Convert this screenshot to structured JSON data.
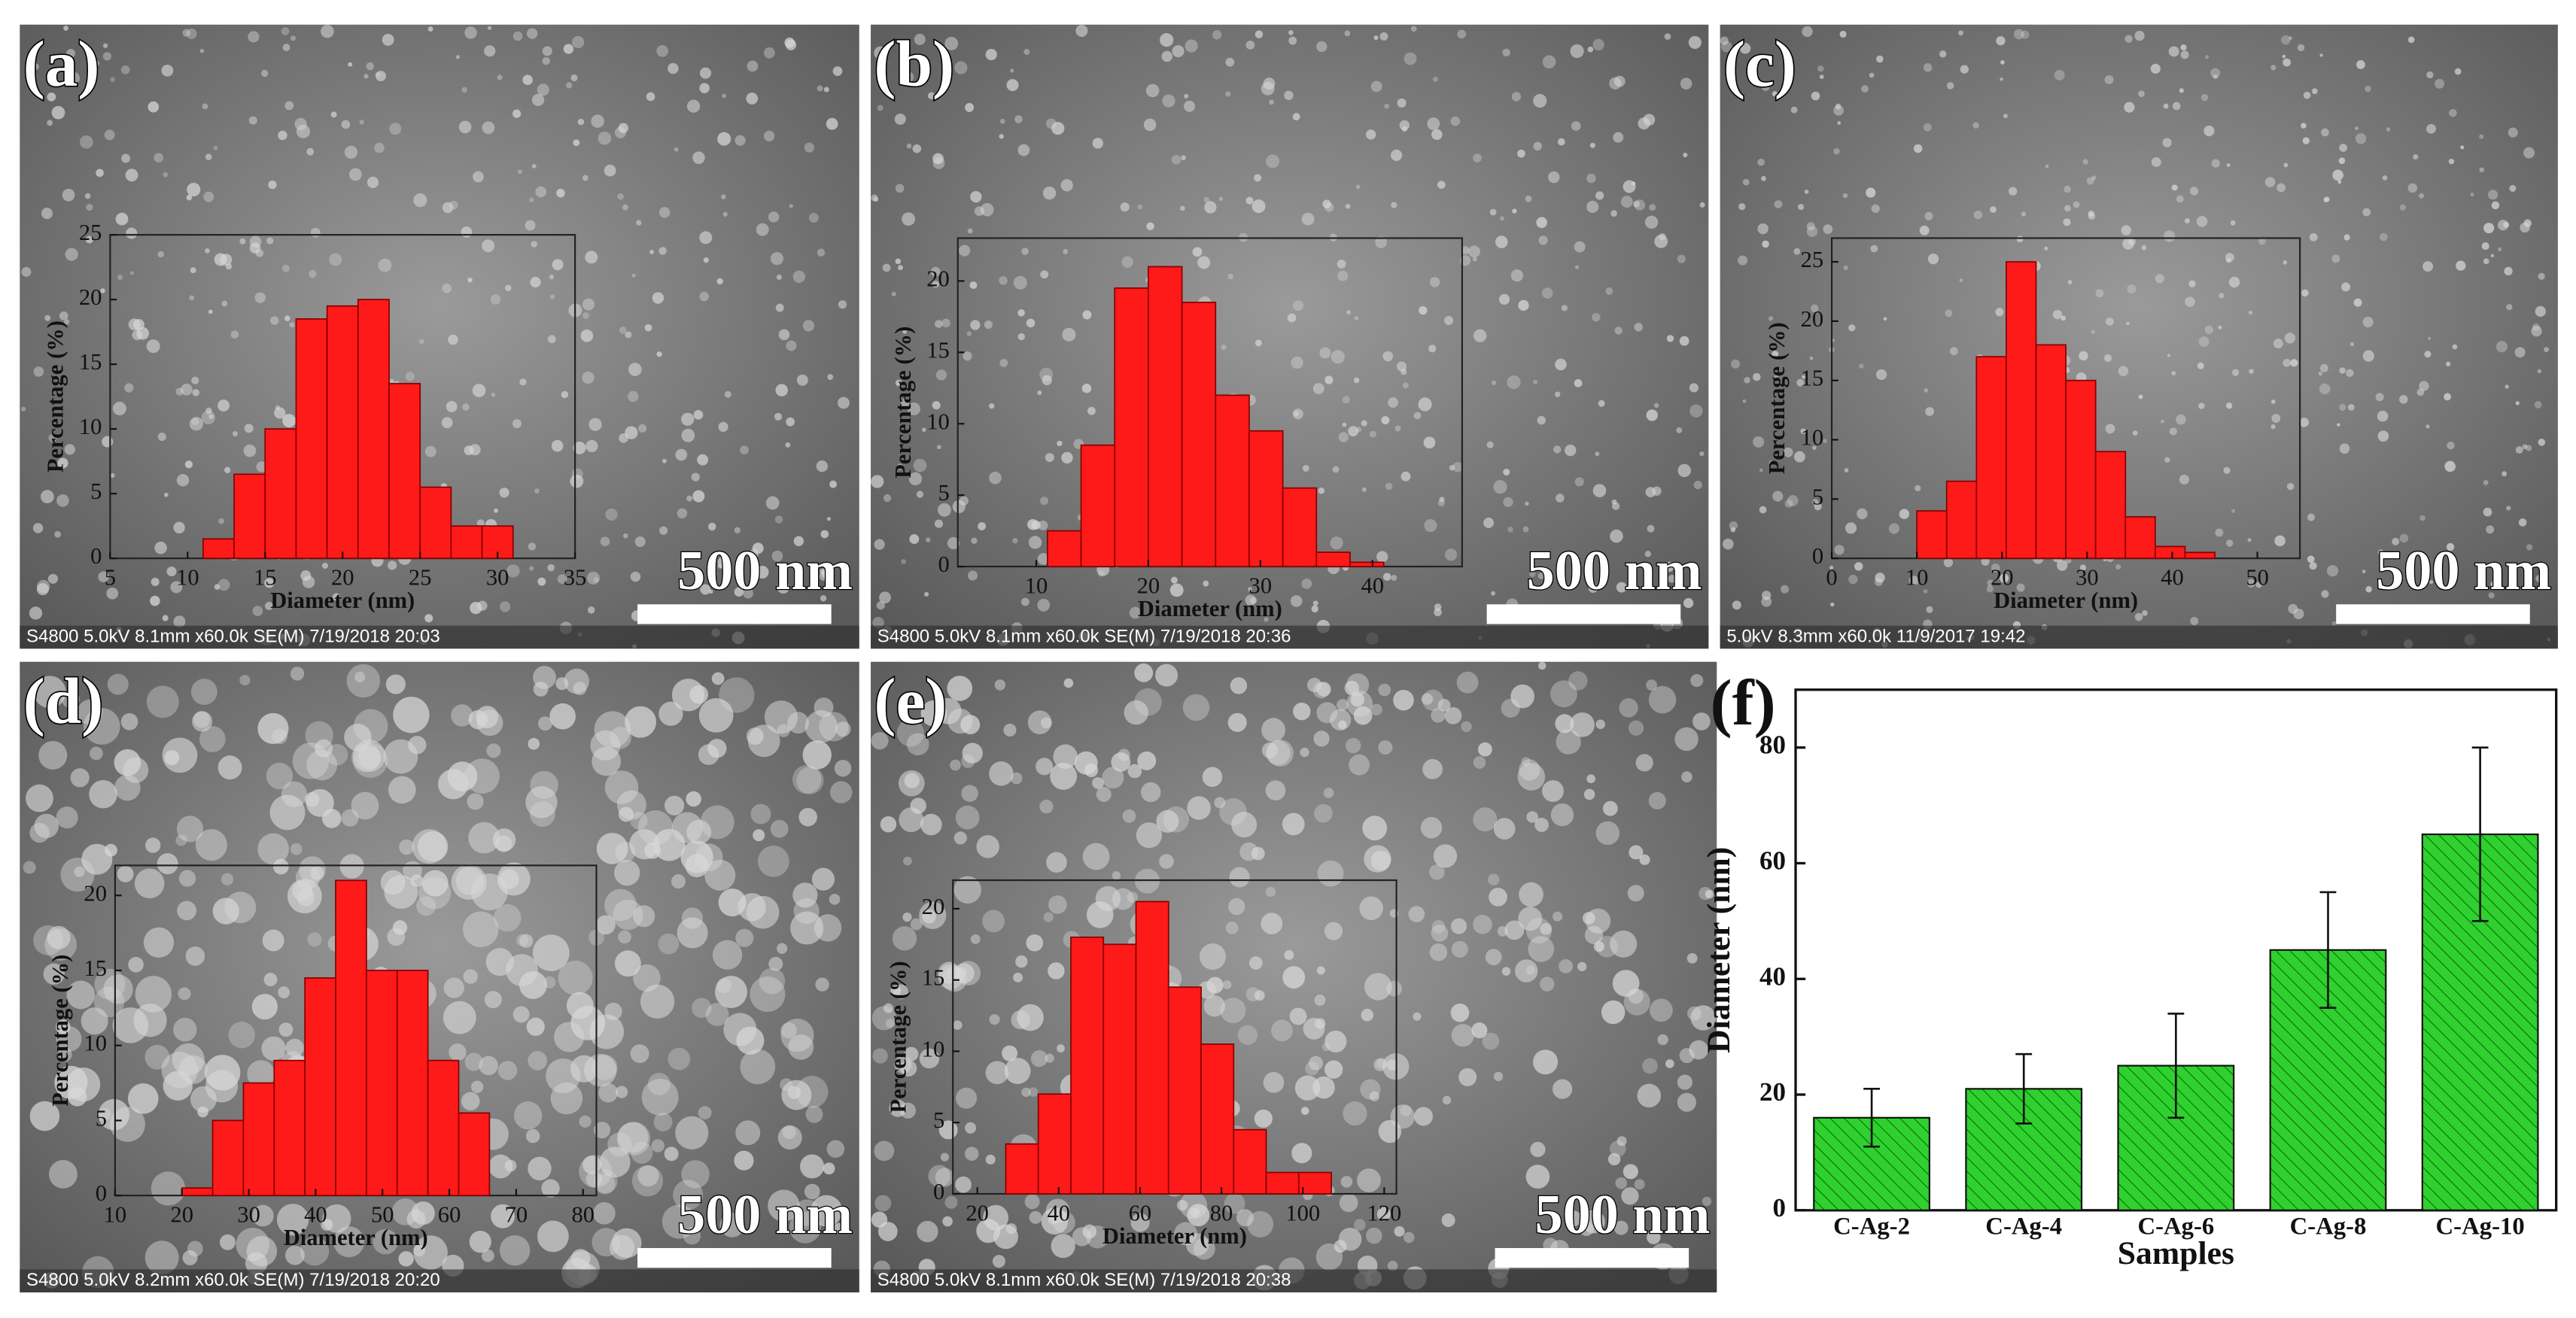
{
  "chart_data": [
    {
      "type": "histogram",
      "panel_label": "(a)",
      "scale_bar": "500 nm",
      "info": "S4800 5.0kV 8.1mm x60.0k SE(M) 7/19/2018 20:03",
      "xlabel": "Diameter (nm)",
      "ylabel": "Percentage (%)",
      "color": "#ff1a1a",
      "bins": [
        11,
        13,
        15,
        17,
        19,
        21,
        23,
        25,
        27,
        29,
        31
      ],
      "values": [
        1.5,
        6.5,
        10,
        18.5,
        19.5,
        20,
        13.5,
        5.5,
        2.5,
        2.5
      ],
      "xlim": [
        5,
        35
      ],
      "xticks": [
        5,
        10,
        15,
        20,
        25,
        30,
        35
      ],
      "ylim": [
        0,
        25
      ],
      "yticks": [
        0,
        5,
        10,
        15,
        20,
        25
      ]
    },
    {
      "type": "histogram",
      "panel_label": "(b)",
      "scale_bar": "500 nm",
      "info": "S4800 5.0kV 8.1mm x60.0k SE(M) 7/19/2018 20:36",
      "xlabel": "Diameter (nm)",
      "ylabel": "Percentage (%)",
      "color": "#ff1a1a",
      "bins": [
        11,
        14,
        17,
        20,
        23,
        26,
        29,
        32,
        35,
        38,
        41
      ],
      "values": [
        2.5,
        8.5,
        19.5,
        21,
        18.5,
        12,
        9.5,
        5.5,
        1,
        0.3
      ],
      "xlim": [
        3,
        48
      ],
      "xticks": [
        10,
        20,
        30,
        40
      ],
      "ylim": [
        0,
        23
      ],
      "yticks": [
        0,
        5,
        10,
        15,
        20
      ]
    },
    {
      "type": "histogram",
      "panel_label": "(c)",
      "scale_bar": "500 nm",
      "info": "5.0kV 8.3mm x60.0k 11/9/2017 19:42",
      "xlabel": "Diameter (nm)",
      "ylabel": "Percentage (%)",
      "color": "#ff1a1a",
      "bins": [
        10,
        13.5,
        17,
        20.5,
        24,
        27.5,
        31,
        34.5,
        38,
        41.5,
        45
      ],
      "values": [
        4,
        6.5,
        17,
        25,
        18,
        15,
        9,
        3.5,
        1,
        0.5
      ],
      "xlim": [
        0,
        55
      ],
      "xticks": [
        0,
        10,
        20,
        30,
        40,
        50
      ],
      "ylim": [
        0,
        27
      ],
      "yticks": [
        0,
        5,
        10,
        15,
        20,
        25
      ]
    },
    {
      "type": "histogram",
      "panel_label": "(d)",
      "scale_bar": "500 nm",
      "info": "S4800 5.0kV 8.2mm x60.0k SE(M) 7/19/2018 20:20",
      "xlabel": "Diameter (nm)",
      "ylabel": "Percentage (%)",
      "color": "#ff1a1a",
      "bins": [
        20,
        24.6,
        29.2,
        33.8,
        38.4,
        43,
        47.6,
        52.2,
        56.8,
        61.4,
        66
      ],
      "values": [
        0.5,
        5,
        7.5,
        9,
        14.5,
        21,
        15,
        15,
        9,
        5.5
      ],
      "xlim": [
        10,
        82
      ],
      "xticks": [
        10,
        20,
        30,
        40,
        50,
        60,
        70,
        80
      ],
      "ylim": [
        0,
        22
      ],
      "yticks": [
        0,
        5,
        10,
        15,
        20
      ]
    },
    {
      "type": "histogram",
      "panel_label": "(e)",
      "scale_bar": "500 nm",
      "info": "S4800 5.0kV 8.1mm x60.0k SE(M) 7/19/2018 20:38",
      "xlabel": "Diameter (nm)",
      "ylabel": "Percentage (%)",
      "color": "#ff1a1a",
      "bins": [
        27,
        35,
        43,
        51,
        59,
        67,
        75,
        83,
        91,
        99,
        107
      ],
      "values": [
        3.5,
        7,
        18,
        17.5,
        20.5,
        14.5,
        10.5,
        4.5,
        1.5,
        1.5
      ],
      "xlim": [
        14,
        123
      ],
      "xticks": [
        20,
        40,
        60,
        80,
        100,
        120
      ],
      "ylim": [
        0,
        22
      ],
      "yticks": [
        0,
        5,
        10,
        15,
        20
      ]
    },
    {
      "type": "bar",
      "panel_label": "(f)",
      "xlabel": "Samples",
      "ylabel": "Diameter (nm)",
      "color": "#2fd12f",
      "categories": [
        "C-Ag-2",
        "C-Ag-4",
        "C-Ag-6",
        "C-Ag-8",
        "C-Ag-10"
      ],
      "values": [
        16,
        21,
        25,
        45,
        65
      ],
      "errors": [
        5,
        6,
        9,
        10,
        15
      ],
      "ylim": [
        0,
        90
      ],
      "yticks": [
        0,
        20,
        40,
        60,
        80
      ]
    }
  ]
}
